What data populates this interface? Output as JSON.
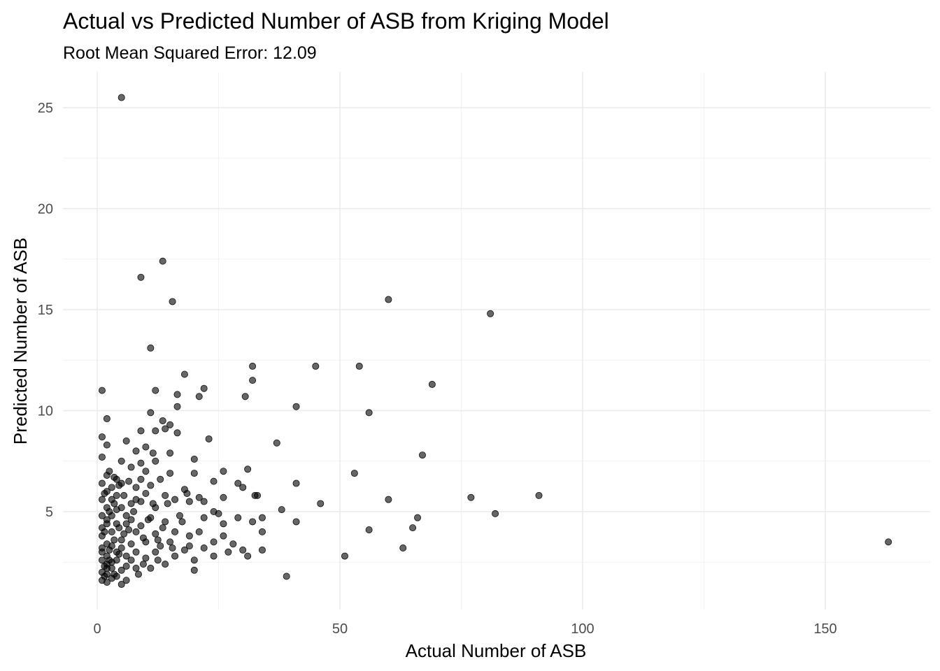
{
  "chart_data": {
    "type": "scatter",
    "title": "Actual vs Predicted Number of ASB from Kriging Model",
    "subtitle": "Root Mean Squared Error: 12.09",
    "xlabel": "Actual Number of ASB",
    "ylabel": "Predicted Number of ASB",
    "xlim": [
      -5,
      168
    ],
    "ylim": [
      1,
      26
    ],
    "x_ticks": [
      0,
      50,
      100,
      150
    ],
    "y_ticks": [
      5,
      10,
      15,
      20,
      25
    ],
    "x_tick_labels": [
      "0",
      "50",
      "100",
      "150"
    ],
    "y_tick_labels": [
      "5",
      "10",
      "15",
      "20",
      "25"
    ],
    "grid": true,
    "point_color": "#000000",
    "point_alpha": 0.6,
    "points": [
      [
        5,
        25.5
      ],
      [
        13.5,
        17.4
      ],
      [
        9,
        16.6
      ],
      [
        15.5,
        15.4
      ],
      [
        60,
        15.5
      ],
      [
        81,
        14.8
      ],
      [
        11,
        13.1
      ],
      [
        1,
        11
      ],
      [
        12,
        11
      ],
      [
        32,
        12.2
      ],
      [
        45,
        12.2
      ],
      [
        54,
        12.2
      ],
      [
        69,
        11.3
      ],
      [
        18,
        11.8
      ],
      [
        22,
        11.1
      ],
      [
        16.5,
        10.8
      ],
      [
        21,
        10.7
      ],
      [
        30.5,
        10.7
      ],
      [
        32,
        11.5
      ],
      [
        41,
        10.2
      ],
      [
        56,
        9.9
      ],
      [
        11,
        9.9
      ],
      [
        16.5,
        10.2
      ],
      [
        2,
        9.6
      ],
      [
        13.5,
        9.5
      ],
      [
        15,
        9.3
      ],
      [
        9,
        9
      ],
      [
        12,
        9
      ],
      [
        14,
        9.1
      ],
      [
        16.5,
        8.9
      ],
      [
        1,
        8.7
      ],
      [
        23,
        8.6
      ],
      [
        37,
        8.4
      ],
      [
        2,
        8.3
      ],
      [
        6,
        8.5
      ],
      [
        10,
        8.2
      ],
      [
        8,
        8
      ],
      [
        11.5,
        7.9
      ],
      [
        15,
        7.9
      ],
      [
        67,
        7.8
      ],
      [
        1,
        7.7
      ],
      [
        5,
        7.5
      ],
      [
        9,
        7.4
      ],
      [
        12,
        7.5
      ],
      [
        20,
        7.6
      ],
      [
        7,
        7.2
      ],
      [
        10,
        7
      ],
      [
        26,
        7
      ],
      [
        31,
        7.1
      ],
      [
        53,
        6.9
      ],
      [
        2,
        6.8
      ],
      [
        4,
        6.6
      ],
      [
        6.5,
        6.5
      ],
      [
        13,
        6.6
      ],
      [
        15,
        6.9
      ],
      [
        20,
        6.9
      ],
      [
        24,
        6.5
      ],
      [
        29,
        6.4
      ],
      [
        41,
        6.4
      ],
      [
        30,
        6.2
      ],
      [
        18,
        6.1
      ],
      [
        8,
        6.2
      ],
      [
        11,
        6.3
      ],
      [
        3,
        6.2
      ],
      [
        5,
        6.4
      ],
      [
        1.5,
        5.9
      ],
      [
        10,
        5.9
      ],
      [
        14,
        5.8
      ],
      [
        33,
        5.8
      ],
      [
        32.5,
        5.8
      ],
      [
        60,
        5.6
      ],
      [
        77,
        5.7
      ],
      [
        91,
        5.8
      ],
      [
        21,
        5.7
      ],
      [
        26,
        5.7
      ],
      [
        16,
        5.6
      ],
      [
        19,
        5.5
      ],
      [
        22,
        5.5
      ],
      [
        7,
        5.4
      ],
      [
        9,
        5.5
      ],
      [
        46,
        5.4
      ],
      [
        12,
        5.2
      ],
      [
        38,
        5.1
      ],
      [
        4,
        5.1
      ],
      [
        24,
        5
      ],
      [
        25,
        4.9
      ],
      [
        17,
        4.8
      ],
      [
        82,
        4.9
      ],
      [
        2,
        4.6
      ],
      [
        11,
        4.7
      ],
      [
        22,
        4.7
      ],
      [
        29,
        4.7
      ],
      [
        34,
        4.7
      ],
      [
        66,
        4.7
      ],
      [
        14,
        4.5
      ],
      [
        26,
        4.4
      ],
      [
        32,
        4.5
      ],
      [
        41,
        4.5
      ],
      [
        6,
        4.4
      ],
      [
        9,
        4.3
      ],
      [
        65,
        4.2
      ],
      [
        56,
        4.1
      ],
      [
        34,
        4
      ],
      [
        21,
        4
      ],
      [
        16,
        4
      ],
      [
        8,
        4
      ],
      [
        3,
        4
      ],
      [
        12,
        3.9
      ],
      [
        26,
        3.8
      ],
      [
        19,
        3.8
      ],
      [
        24,
        3.5
      ],
      [
        5,
        3.6
      ],
      [
        10,
        3.5
      ],
      [
        15,
        3.5
      ],
      [
        28,
        3.4
      ],
      [
        13,
        3.3
      ],
      [
        19,
        3.3
      ],
      [
        22,
        3.2
      ],
      [
        30,
        3.1
      ],
      [
        34,
        3.1
      ],
      [
        63,
        3.2
      ],
      [
        163,
        3.5
      ],
      [
        4,
        3
      ],
      [
        12,
        3
      ],
      [
        18,
        3.1
      ],
      [
        27,
        3
      ],
      [
        51,
        2.8
      ],
      [
        24,
        2.8
      ],
      [
        31,
        2.8
      ],
      [
        16,
        2.8
      ],
      [
        20,
        2.6
      ],
      [
        10,
        2.7
      ],
      [
        7,
        2.6
      ],
      [
        3,
        2.5
      ],
      [
        14,
        2.4
      ],
      [
        11,
        2.2
      ],
      [
        20,
        2.1
      ],
      [
        8,
        2.2
      ],
      [
        39,
        1.8
      ],
      [
        2,
        1.9
      ],
      [
        4,
        1.8
      ],
      [
        6,
        1.6
      ],
      [
        1,
        1.6
      ],
      [
        2,
        1.5
      ],
      [
        5,
        1.4
      ],
      [
        3,
        1.7
      ],
      [
        1,
        2
      ],
      [
        2,
        2.2
      ],
      [
        1,
        2.6
      ],
      [
        2,
        2.8
      ],
      [
        1,
        3.2
      ],
      [
        2,
        3.4
      ],
      [
        1,
        3.8
      ],
      [
        3,
        3.3
      ],
      [
        1,
        4.2
      ],
      [
        2,
        4.4
      ],
      [
        1,
        4.8
      ],
      [
        3,
        4.8
      ],
      [
        2,
        5.2
      ],
      [
        1,
        5.6
      ],
      [
        3,
        5.6
      ],
      [
        2,
        6
      ],
      [
        1,
        6.4
      ],
      [
        4,
        5.8
      ],
      [
        5,
        5.2
      ],
      [
        6,
        4.8
      ],
      [
        4,
        4.4
      ],
      [
        5,
        3.2
      ],
      [
        6,
        2.8
      ],
      [
        7,
        3.4
      ],
      [
        8,
        3
      ],
      [
        7,
        4.6
      ],
      [
        8,
        5.6
      ],
      [
        9,
        6.6
      ],
      [
        3,
        2.2
      ],
      [
        4,
        2.6
      ],
      [
        5,
        2.1
      ],
      [
        6,
        2.3
      ],
      [
        2,
        2.4
      ],
      [
        1,
        3
      ],
      [
        1.5,
        1.8
      ],
      [
        2.5,
        2.6
      ],
      [
        3.5,
        3.6
      ],
      [
        4.5,
        4.2
      ],
      [
        2.5,
        5
      ],
      [
        3.5,
        5.4
      ],
      [
        1.5,
        4
      ],
      [
        2.5,
        3.1
      ],
      [
        1.5,
        2.3
      ],
      [
        3.5,
        1.9
      ],
      [
        4.5,
        2.9
      ],
      [
        5.5,
        3.9
      ],
      [
        6.5,
        4.1
      ],
      [
        7.5,
        5
      ],
      [
        5.5,
        5.8
      ],
      [
        4.5,
        6.3
      ],
      [
        3.5,
        6.7
      ],
      [
        2.5,
        7
      ],
      [
        9.5,
        3.7
      ],
      [
        10.5,
        4.6
      ],
      [
        11.5,
        5.4
      ],
      [
        12.5,
        3.6
      ],
      [
        13.5,
        4.2
      ],
      [
        9.5,
        2.4
      ],
      [
        8.5,
        1.9
      ],
      [
        12.5,
        2.6
      ],
      [
        14.5,
        5.4
      ],
      [
        15.5,
        3.2
      ],
      [
        17.5,
        4.5
      ],
      [
        18.5,
        5.9
      ]
    ]
  }
}
